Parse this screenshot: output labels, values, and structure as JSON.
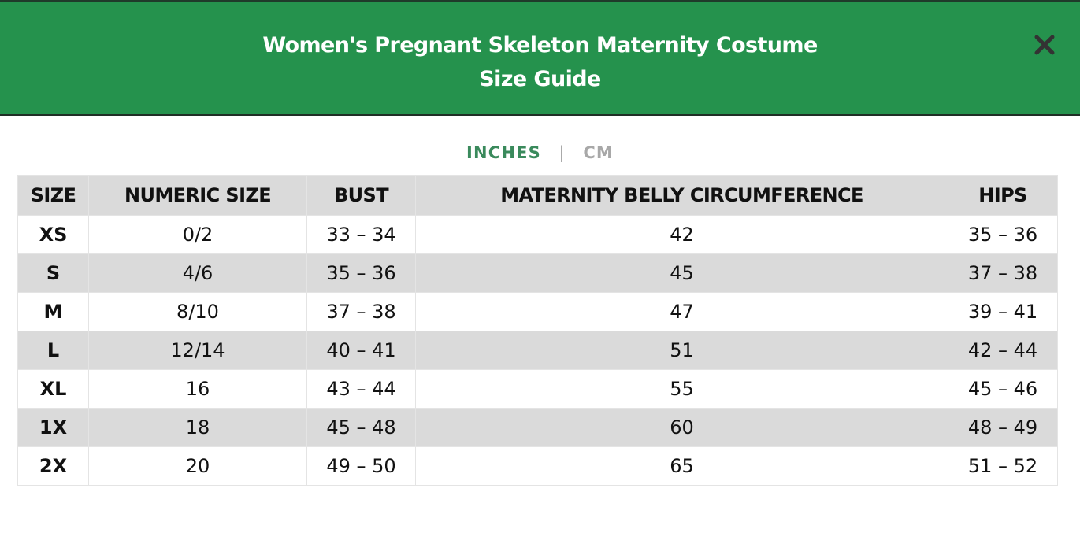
{
  "header": {
    "title_line1": "Women's Pregnant Skeleton Maternity Costume",
    "title_line2": "Size Guide",
    "close_icon": "close-icon"
  },
  "units": {
    "inches_label": "INCHES",
    "separator": "|",
    "cm_label": "CM",
    "active": "INCHES"
  },
  "colors": {
    "header_bg": "#25924d",
    "active_unit": "#3a8a5c",
    "inactive_unit": "#a8a8a8",
    "stripe": "#dadada"
  },
  "table": {
    "columns": [
      "SIZE",
      "NUMERIC SIZE",
      "BUST",
      "MATERNITY BELLY CIRCUMFERENCE",
      "HIPS"
    ],
    "rows": [
      [
        "XS",
        "0/2",
        "33 – 34",
        "42",
        "35 – 36"
      ],
      [
        "S",
        "4/6",
        "35 – 36",
        "45",
        "37 – 38"
      ],
      [
        "M",
        "8/10",
        "37 – 38",
        "47",
        "39 – 41"
      ],
      [
        "L",
        "12/14",
        "40 – 41",
        "51",
        "42 – 44"
      ],
      [
        "XL",
        "16",
        "43 – 44",
        "55",
        "45 – 46"
      ],
      [
        "1X",
        "18",
        "45 – 48",
        "60",
        "48 – 49"
      ],
      [
        "2X",
        "20",
        "49 – 50",
        "65",
        "51 – 52"
      ]
    ]
  }
}
